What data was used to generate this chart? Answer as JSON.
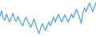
{
  "values": [
    5.5,
    6.2,
    5.3,
    5.0,
    5.8,
    5.2,
    4.8,
    5.4,
    5.9,
    5.1,
    4.9,
    5.5,
    5.0,
    4.6,
    4.3,
    5.0,
    5.4,
    4.9,
    4.5,
    4.1,
    4.7,
    5.2,
    4.4,
    3.8,
    3.3,
    4.0,
    4.6,
    4.1,
    3.7,
    4.3,
    4.8,
    4.3,
    4.9,
    5.4,
    4.8,
    5.3,
    5.8,
    5.2,
    4.8,
    5.3,
    5.7,
    5.2,
    4.8,
    5.3,
    5.8,
    5.3,
    5.9,
    6.4,
    5.8,
    5.3,
    4.6,
    6.0,
    6.6,
    6.1,
    6.7,
    7.2,
    6.6,
    6.1,
    6.7,
    7.3
  ],
  "line_color": "#4da6e8",
  "background_color": "#ffffff",
  "linewidth": 0.9
}
